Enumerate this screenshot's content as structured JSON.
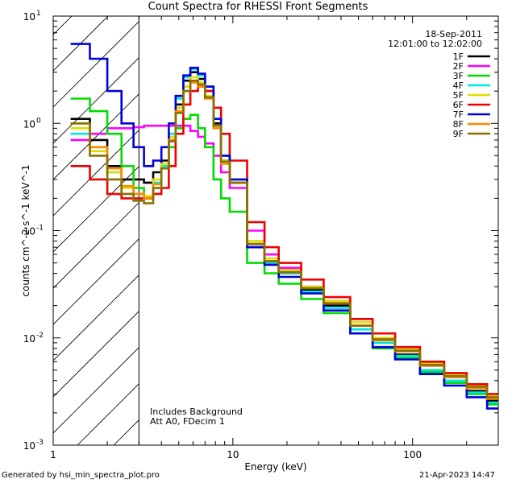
{
  "title": "Count Spectra for RHESSI Front Segments",
  "footer": {
    "left": "Generated by hsi_min_spectra_plot.pro",
    "right": "21-Apr-2023 14:47"
  },
  "annotations": {
    "date": "18-Sep-2011",
    "time_range": "12:01:00 to 12:02:00",
    "note1": "Includes Background",
    "note2": "Att A0, FDecim 1"
  },
  "colors": {
    "1F": "#000000",
    "2F": "#ff00ff",
    "3F": "#00dd00",
    "4F": "#00e5e5",
    "5F": "#dddd00",
    "6F": "#ee0000",
    "7F": "#0000dd",
    "8F": "#ff8800",
    "9F": "#8a7000"
  },
  "chart_data": {
    "type": "line",
    "title": "Count Spectra for RHESSI Front Segments",
    "xlabel": "Energy (keV)",
    "ylabel": "counts cm^-2 s^-1 keV^-1",
    "xscale": "log",
    "yscale": "log",
    "xlim": [
      1,
      300
    ],
    "ylim": [
      0.001,
      10
    ],
    "xticks": [
      1,
      10,
      100
    ],
    "yticks": [
      0.001,
      0.01,
      0.1,
      1,
      10
    ],
    "xtick_labels": [
      "1",
      "10",
      "100"
    ],
    "ytick_labels": [
      "10",
      "10",
      "10",
      "10",
      "10"
    ],
    "ytick_exponents": [
      "-3",
      "-2",
      "-1",
      "0",
      "1"
    ],
    "hatched_region": [
      1,
      3
    ],
    "vertical_line": 3,
    "series": [
      {
        "name": "1F",
        "values": [
          1.1,
          0.7,
          0.4,
          0.3,
          0.3,
          0.28,
          0.35,
          0.45,
          0.7,
          1.5,
          2.5,
          3.0,
          2.6,
          2.0,
          1.0,
          0.45,
          0.28,
          0.07,
          0.05,
          0.04,
          0.028,
          0.02,
          0.012,
          0.009,
          0.007,
          0.005,
          0.004,
          0.0032,
          0.0026
        ]
      },
      {
        "name": "2F",
        "values": [
          0.7,
          0.8,
          0.9,
          0.9,
          0.92,
          0.95,
          0.95,
          0.95,
          0.95,
          0.95,
          0.95,
          0.85,
          0.75,
          0.65,
          0.5,
          0.35,
          0.25,
          0.1,
          0.06,
          0.045,
          0.03,
          0.022,
          0.013,
          0.01,
          0.008,
          0.0055,
          0.0045,
          0.0035,
          0.0028
        ]
      },
      {
        "name": "3F",
        "values": [
          1.7,
          1.3,
          0.8,
          0.4,
          0.25,
          0.2,
          0.25,
          0.4,
          0.6,
          0.9,
          1.1,
          1.2,
          0.9,
          0.6,
          0.3,
          0.2,
          0.15,
          0.05,
          0.04,
          0.032,
          0.023,
          0.017,
          0.011,
          0.008,
          0.0065,
          0.0048,
          0.0038,
          0.003,
          0.0024
        ]
      },
      {
        "name": "4F",
        "values": [
          0.8,
          0.6,
          0.35,
          0.22,
          0.2,
          0.2,
          0.28,
          0.4,
          0.8,
          1.7,
          2.7,
          3.2,
          2.8,
          2.2,
          1.1,
          0.5,
          0.3,
          0.075,
          0.05,
          0.04,
          0.027,
          0.019,
          0.012,
          0.009,
          0.0068,
          0.005,
          0.004,
          0.0031,
          0.0025
        ]
      },
      {
        "name": "5F",
        "values": [
          0.9,
          0.55,
          0.35,
          0.25,
          0.22,
          0.21,
          0.3,
          0.42,
          0.75,
          1.4,
          2.2,
          2.7,
          2.4,
          1.8,
          0.95,
          0.45,
          0.3,
          0.08,
          0.055,
          0.043,
          0.03,
          0.022,
          0.014,
          0.01,
          0.008,
          0.0058,
          0.0046,
          0.0036,
          0.0029
        ]
      },
      {
        "name": "6F",
        "values": [
          0.4,
          0.3,
          0.22,
          0.2,
          0.2,
          0.2,
          0.22,
          0.25,
          0.4,
          0.8,
          1.5,
          2.0,
          2.2,
          2.0,
          1.4,
          0.8,
          0.45,
          0.12,
          0.07,
          0.05,
          0.035,
          0.024,
          0.015,
          0.011,
          0.0082,
          0.006,
          0.0047,
          0.0037,
          0.003
        ]
      },
      {
        "name": "7F",
        "values": [
          5.5,
          4.0,
          2.0,
          1.0,
          0.6,
          0.4,
          0.45,
          0.6,
          1.0,
          1.8,
          2.8,
          3.3,
          2.9,
          2.2,
          1.1,
          0.5,
          0.3,
          0.07,
          0.048,
          0.037,
          0.026,
          0.018,
          0.011,
          0.0082,
          0.0063,
          0.0046,
          0.0036,
          0.0028,
          0.0022
        ]
      },
      {
        "name": "8F",
        "values": [
          1.0,
          0.6,
          0.38,
          0.26,
          0.22,
          0.2,
          0.27,
          0.38,
          0.7,
          1.3,
          2.0,
          2.4,
          2.2,
          1.7,
          0.9,
          0.42,
          0.28,
          0.075,
          0.052,
          0.041,
          0.029,
          0.021,
          0.013,
          0.0095,
          0.0075,
          0.0055,
          0.0043,
          0.0034,
          0.0027
        ]
      },
      {
        "name": "9F",
        "values": [
          1.0,
          0.5,
          0.3,
          0.22,
          0.19,
          0.18,
          0.25,
          0.38,
          0.68,
          1.25,
          2.0,
          2.5,
          2.3,
          1.75,
          0.95,
          0.44,
          0.28,
          0.075,
          0.052,
          0.041,
          0.029,
          0.021,
          0.013,
          0.0097,
          0.0076,
          0.0056,
          0.0044,
          0.0035,
          0.0028
        ]
      }
    ],
    "x": [
      1.25,
      1.6,
      2.0,
      2.4,
      2.8,
      3.2,
      3.6,
      4.0,
      4.4,
      4.8,
      5.3,
      5.8,
      6.4,
      7.0,
      7.8,
      8.6,
      9.6,
      12.0,
      15.0,
      18.0,
      24.0,
      32.0,
      45.0,
      60.0,
      80.0,
      110.0,
      150.0,
      200.0,
      260.0
    ]
  }
}
